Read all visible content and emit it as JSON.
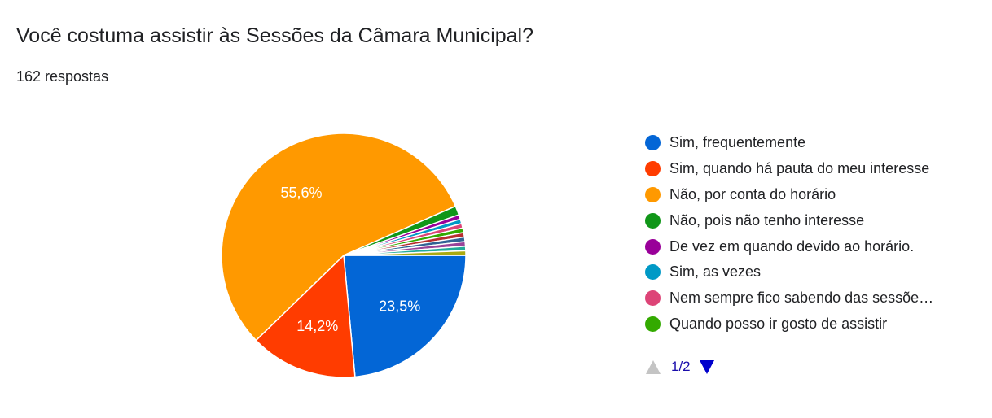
{
  "header": {
    "title": "Você costuma assistir às Sessões da Câmara Municipal?",
    "response_count": "162 respostas"
  },
  "chart_data": {
    "type": "pie",
    "start_angle_deg": 90,
    "direction": "clockwise",
    "slices": [
      {
        "label": "Sim, frequentemente",
        "value": 23.5,
        "color": "#0366d6",
        "data_label": "23,5%"
      },
      {
        "label": "Sim, quando há pauta do meu interesse",
        "value": 14.2,
        "color": "#ff3c00",
        "data_label": "14,2%"
      },
      {
        "label": "Não, por conta do horário",
        "value": 55.6,
        "color": "#ff9900",
        "data_label": "55,6%"
      },
      {
        "label": "Não, pois não tenho interesse",
        "value": 1.2,
        "color": "#109618",
        "data_label": ""
      },
      {
        "label": "De vez em quando devido ao horário.",
        "value": 0.6,
        "color": "#990099",
        "data_label": ""
      },
      {
        "label": "Sim, as vezes",
        "value": 0.6,
        "color": "#0099c6",
        "data_label": ""
      },
      {
        "label": "Nem sempre fico sabendo das sessõe…",
        "value": 0.6,
        "color": "#dd4477",
        "data_label": ""
      },
      {
        "label": "Quando posso ir gosto de assistir",
        "value": 0.6,
        "color": "#33aa00",
        "data_label": ""
      },
      {
        "label": "",
        "value": 0.6,
        "color": "#b82e2e",
        "data_label": ""
      },
      {
        "label": "",
        "value": 0.6,
        "color": "#316395",
        "data_label": ""
      },
      {
        "label": "",
        "value": 0.6,
        "color": "#994499",
        "data_label": ""
      },
      {
        "label": "",
        "value": 0.6,
        "color": "#22aa99",
        "data_label": ""
      },
      {
        "label": "",
        "value": 0.6,
        "color": "#aaaa11",
        "data_label": ""
      }
    ]
  },
  "legend": {
    "items": [
      {
        "label": "Sim, frequentemente",
        "color": "#0366d6"
      },
      {
        "label": "Sim, quando há pauta do meu interesse",
        "color": "#ff3c00"
      },
      {
        "label": "Não, por conta do horário",
        "color": "#ff9900"
      },
      {
        "label": "Não, pois não tenho interesse",
        "color": "#109618"
      },
      {
        "label": "De vez em quando devido ao horário.",
        "color": "#990099"
      },
      {
        "label": "Sim, as vezes",
        "color": "#0099c6"
      },
      {
        "label": "Nem sempre fico sabendo das sessõe…",
        "color": "#dd4477"
      },
      {
        "label": "Quando posso ir gosto de assistir",
        "color": "#33aa00"
      }
    ]
  },
  "pager": {
    "page_label": "1/2",
    "prev_icon": "triangle-up-icon",
    "next_icon": "triangle-down-icon",
    "prev_color": "#c4c4c4",
    "next_color": "#0000cc"
  }
}
